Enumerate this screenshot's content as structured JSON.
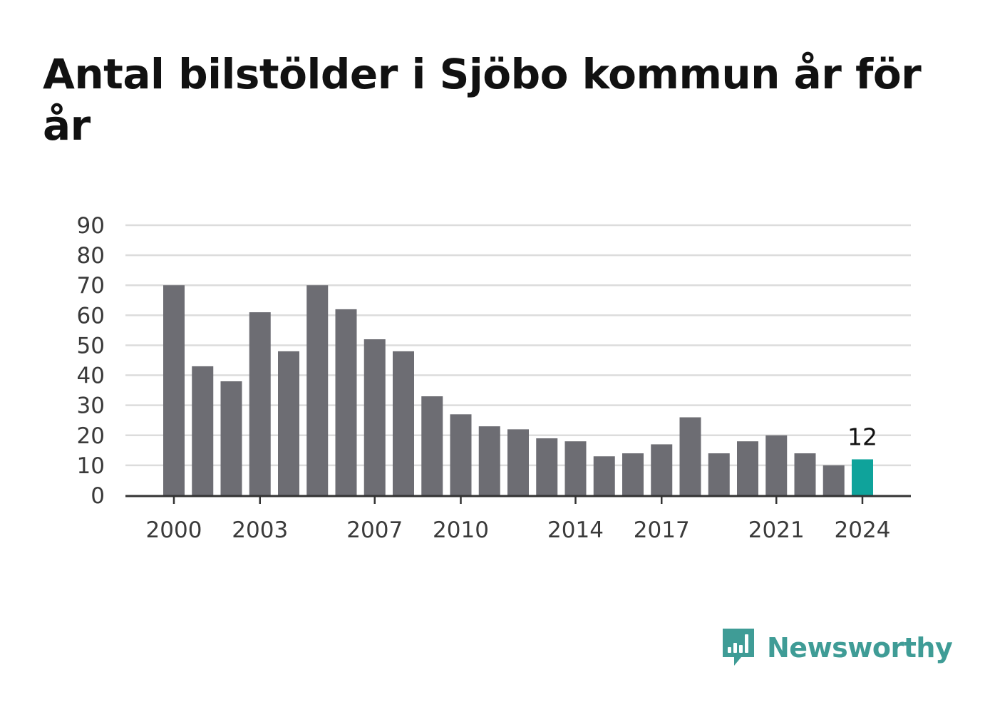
{
  "title": "Antal bilstölder i Sjöbo kommun år för år",
  "brand": {
    "name": "Newsworthy",
    "color": "#3f9c96"
  },
  "colors": {
    "bar": "#6d6d73",
    "highlight": "#0fa39b",
    "grid": "#dcdcdc",
    "axis": "#333333"
  },
  "chart_data": {
    "type": "bar",
    "categories": [
      2000,
      2001,
      2002,
      2003,
      2004,
      2005,
      2006,
      2007,
      2008,
      2009,
      2010,
      2011,
      2012,
      2013,
      2014,
      2015,
      2016,
      2017,
      2018,
      2019,
      2020,
      2021,
      2022,
      2023,
      2024
    ],
    "values": [
      70,
      43,
      38,
      61,
      48,
      70,
      62,
      52,
      48,
      33,
      27,
      23,
      22,
      19,
      18,
      13,
      14,
      17,
      26,
      14,
      18,
      20,
      14,
      10,
      12
    ],
    "x_tick_labels": [
      "2000",
      "2003",
      "2007",
      "2010",
      "2014",
      "2017",
      "2021",
      "2024"
    ],
    "y_ticks": [
      0,
      10,
      20,
      30,
      40,
      50,
      60,
      70,
      80,
      90
    ],
    "ylim": [
      0,
      90
    ],
    "highlight_category": 2024,
    "highlight_label": "12",
    "grid": true,
    "legend": "none"
  }
}
